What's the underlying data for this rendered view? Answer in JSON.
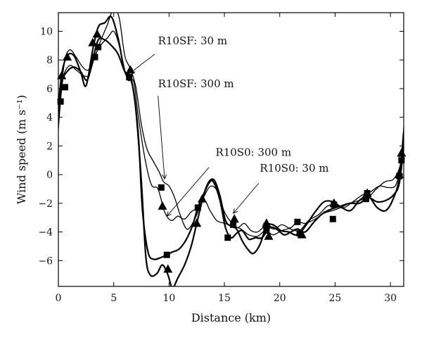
{
  "chart_data": {
    "type": "line",
    "xlabel": "Distance (km)",
    "ylabel": "Wind speed (m s⁻¹)",
    "xlim": [
      0,
      31.2
    ],
    "ylim": [
      -7.8,
      11.3
    ],
    "xticks": [
      0,
      5,
      10,
      15,
      20,
      25,
      30
    ],
    "yticks": [
      -6,
      -4,
      -2,
      0,
      2,
      4,
      6,
      8,
      10
    ],
    "grid": false,
    "legend": "none",
    "series": [
      {
        "id": "sf30",
        "line_width": 1.3,
        "marker": "none",
        "points": [
          [
            0,
            3.5
          ],
          [
            0.5,
            7.6
          ],
          [
            1.0,
            8.7
          ],
          [
            1.6,
            8.2
          ],
          [
            2.2,
            7.5
          ],
          [
            2.7,
            7.3
          ],
          [
            3.2,
            8.0
          ],
          [
            3.8,
            9.3
          ],
          [
            4.4,
            10.4
          ],
          [
            5.0,
            11.6
          ],
          [
            5.5,
            10.9
          ],
          [
            6.0,
            8.3
          ],
          [
            6.5,
            7.4
          ],
          [
            7.0,
            6.1
          ],
          [
            7.5,
            3.5
          ],
          [
            8.0,
            1.8
          ],
          [
            8.6,
            0.9
          ],
          [
            9.1,
            0.2
          ],
          [
            9.5,
            -0.5
          ],
          [
            10.0,
            -0.8
          ],
          [
            10.5,
            -1.6
          ],
          [
            11.0,
            -2.8
          ],
          [
            11.6,
            -3.8
          ],
          [
            12.2,
            -3.3
          ],
          [
            12.8,
            -2.2
          ],
          [
            13.3,
            -1.3
          ],
          [
            13.8,
            -0.8
          ],
          [
            14.4,
            -1.2
          ],
          [
            15.0,
            -2.6
          ],
          [
            15.6,
            -3.3
          ],
          [
            16.2,
            -3.7
          ],
          [
            16.8,
            -3.4
          ],
          [
            17.4,
            -3.9
          ],
          [
            18.0,
            -4.0
          ],
          [
            18.7,
            -3.6
          ],
          [
            19.5,
            -3.8
          ],
          [
            20.2,
            -3.5
          ],
          [
            21.0,
            -3.8
          ],
          [
            21.8,
            -3.9
          ],
          [
            22.6,
            -3.2
          ],
          [
            23.5,
            -2.8
          ],
          [
            24.3,
            -2.2
          ],
          [
            25.0,
            -2.1
          ],
          [
            25.8,
            -2.3
          ],
          [
            26.6,
            -1.9
          ],
          [
            27.5,
            -1.4
          ],
          [
            28.2,
            -1.2
          ],
          [
            29.0,
            -0.8
          ],
          [
            29.8,
            -0.9
          ],
          [
            30.5,
            -0.7
          ],
          [
            31.0,
            1.0
          ],
          [
            31.2,
            3.3
          ]
        ]
      },
      {
        "id": "sf300",
        "line_width": 1.3,
        "marker": "square",
        "points": [
          [
            0,
            3.2
          ],
          [
            0.4,
            6.6
          ],
          [
            1.0,
            7.6
          ],
          [
            1.6,
            7.3
          ],
          [
            2.3,
            6.9
          ],
          [
            2.8,
            7.0
          ],
          [
            3.3,
            8.3
          ],
          [
            3.8,
            9.0
          ],
          [
            4.5,
            9.6
          ],
          [
            5.0,
            10.0
          ],
          [
            5.5,
            9.0
          ],
          [
            6.2,
            6.7
          ],
          [
            6.8,
            6.5
          ],
          [
            7.2,
            4.2
          ],
          [
            7.8,
            1.2
          ],
          [
            8.4,
            -0.7
          ],
          [
            9.0,
            -1.0
          ],
          [
            9.6,
            -2.6
          ],
          [
            10.2,
            -3.2
          ],
          [
            10.8,
            -2.9
          ],
          [
            11.4,
            -3.1
          ],
          [
            12.0,
            -2.6
          ],
          [
            12.6,
            -2.3
          ],
          [
            13.2,
            -1.8
          ],
          [
            13.7,
            -2.5
          ],
          [
            14.3,
            -3.2
          ],
          [
            15.0,
            -3.4
          ],
          [
            15.8,
            -3.6
          ],
          [
            16.5,
            -3.8
          ],
          [
            17.2,
            -4.2
          ],
          [
            18.0,
            -4.3
          ],
          [
            18.7,
            -3.9
          ],
          [
            19.4,
            -4.2
          ],
          [
            20.2,
            -3.9
          ],
          [
            21.0,
            -3.7
          ],
          [
            21.6,
            -3.3
          ],
          [
            22.3,
            -3.4
          ],
          [
            23.2,
            -3.1
          ],
          [
            24.0,
            -2.7
          ],
          [
            24.8,
            -2.5
          ],
          [
            25.5,
            -2.3
          ],
          [
            26.3,
            -2.0
          ],
          [
            27.2,
            -1.8
          ],
          [
            28.0,
            -1.6
          ],
          [
            28.6,
            -1.1
          ],
          [
            29.5,
            -0.5
          ],
          [
            30.3,
            -0.3
          ],
          [
            30.9,
            0.7
          ],
          [
            31.2,
            2.5
          ]
        ],
        "markers": [
          [
            0.2,
            5.1
          ],
          [
            0.6,
            6.1
          ],
          [
            3.3,
            8.2
          ],
          [
            3.6,
            8.9
          ],
          [
            6.4,
            6.8
          ],
          [
            9.3,
            -0.9
          ],
          [
            12.6,
            -2.3
          ],
          [
            15.8,
            -3.5
          ],
          [
            18.8,
            -3.9
          ],
          [
            21.6,
            -3.3
          ],
          [
            24.8,
            -3.1
          ],
          [
            27.8,
            -1.7
          ],
          [
            30.8,
            -0.1
          ],
          [
            31.0,
            1.0
          ]
        ]
      },
      {
        "id": "s0_300",
        "line_width": 2.2,
        "marker": "square",
        "points": [
          [
            0,
            4.0
          ],
          [
            0.3,
            6.4
          ],
          [
            0.8,
            7.2
          ],
          [
            1.4,
            7.5
          ],
          [
            2.0,
            7.2
          ],
          [
            2.6,
            6.6
          ],
          [
            3.1,
            8.0
          ],
          [
            3.6,
            9.4
          ],
          [
            4.2,
            9.4
          ],
          [
            4.8,
            9.0
          ],
          [
            5.4,
            8.4
          ],
          [
            6.0,
            7.2
          ],
          [
            6.6,
            6.6
          ],
          [
            7.2,
            3.0
          ],
          [
            7.6,
            -2.5
          ],
          [
            8.1,
            -5.4
          ],
          [
            8.6,
            -5.9
          ],
          [
            9.2,
            -5.8
          ],
          [
            9.8,
            -5.6
          ],
          [
            10.3,
            -5.4
          ],
          [
            10.9,
            -5.2
          ],
          [
            11.5,
            -4.6
          ],
          [
            12.1,
            -3.6
          ],
          [
            12.6,
            -2.3
          ],
          [
            13.1,
            -1.4
          ],
          [
            13.6,
            -0.6
          ],
          [
            14.0,
            -0.5
          ],
          [
            14.6,
            -1.8
          ],
          [
            15.1,
            -3.7
          ],
          [
            15.6,
            -4.4
          ],
          [
            16.1,
            -4.1
          ],
          [
            16.6,
            -3.9
          ],
          [
            17.2,
            -4.5
          ],
          [
            17.8,
            -4.4
          ],
          [
            18.4,
            -4.4
          ],
          [
            19.1,
            -3.7
          ],
          [
            19.7,
            -3.8
          ],
          [
            20.4,
            -4.2
          ],
          [
            21.0,
            -4.0
          ],
          [
            21.6,
            -3.8
          ],
          [
            22.3,
            -4.0
          ],
          [
            23.1,
            -3.3
          ],
          [
            23.9,
            -2.7
          ],
          [
            24.7,
            -2.4
          ],
          [
            25.5,
            -2.2
          ],
          [
            26.3,
            -2.0
          ],
          [
            27.2,
            -2.0
          ],
          [
            28.0,
            -1.6
          ],
          [
            28.8,
            -1.9
          ],
          [
            29.6,
            -1.8
          ],
          [
            30.3,
            -1.4
          ],
          [
            30.8,
            -0.6
          ],
          [
            31.2,
            2.0
          ]
        ],
        "markers": [
          [
            9.8,
            -5.6
          ],
          [
            15.3,
            -4.4
          ],
          [
            18.8,
            -3.6
          ],
          [
            21.8,
            -4.1
          ],
          [
            24.9,
            -2.1
          ],
          [
            27.9,
            -1.3
          ]
        ]
      },
      {
        "id": "s0_30",
        "line_width": 2.2,
        "marker": "triangle",
        "points": [
          [
            0,
            4.6
          ],
          [
            0.3,
            7.0
          ],
          [
            0.8,
            8.3
          ],
          [
            1.4,
            8.3
          ],
          [
            2.0,
            7.2
          ],
          [
            2.5,
            6.2
          ],
          [
            3.1,
            8.7
          ],
          [
            3.6,
            10.3
          ],
          [
            4.2,
            10.6
          ],
          [
            4.8,
            11.0
          ],
          [
            5.4,
            9.5
          ],
          [
            6.0,
            7.2
          ],
          [
            6.6,
            6.5
          ],
          [
            7.0,
            4.5
          ],
          [
            7.5,
            -0.5
          ],
          [
            7.9,
            -5.7
          ],
          [
            8.3,
            -7.0
          ],
          [
            8.9,
            -6.9
          ],
          [
            9.4,
            -6.3
          ],
          [
            9.9,
            -7.0
          ],
          [
            10.3,
            -7.9
          ],
          [
            10.8,
            -7.2
          ],
          [
            11.4,
            -6.3
          ],
          [
            12.0,
            -5.0
          ],
          [
            12.5,
            -3.4
          ],
          [
            13.1,
            -1.5
          ],
          [
            13.6,
            -0.5
          ],
          [
            14.1,
            -0.4
          ],
          [
            14.6,
            -1.5
          ],
          [
            15.1,
            -3.2
          ],
          [
            15.6,
            -3.6
          ],
          [
            16.1,
            -3.8
          ],
          [
            16.6,
            -4.6
          ],
          [
            17.1,
            -5.2
          ],
          [
            17.6,
            -5.5
          ],
          [
            18.2,
            -4.9
          ],
          [
            18.8,
            -3.6
          ],
          [
            19.4,
            -3.5
          ],
          [
            20.1,
            -3.9
          ],
          [
            20.8,
            -4.0
          ],
          [
            21.6,
            -4.2
          ],
          [
            22.4,
            -3.5
          ],
          [
            23.2,
            -2.6
          ],
          [
            24.0,
            -1.9
          ],
          [
            24.8,
            -1.9
          ],
          [
            25.6,
            -2.3
          ],
          [
            26.4,
            -2.5
          ],
          [
            27.2,
            -1.8
          ],
          [
            28.0,
            -1.5
          ],
          [
            28.8,
            -2.3
          ],
          [
            29.6,
            -2.5
          ],
          [
            30.3,
            -1.6
          ],
          [
            30.8,
            -0.2
          ],
          [
            31.2,
            3.0
          ]
        ],
        "markers": [
          [
            0.3,
            6.9
          ],
          [
            0.8,
            8.2
          ],
          [
            3.1,
            9.2
          ],
          [
            3.5,
            9.8
          ],
          [
            6.5,
            7.3
          ],
          [
            9.4,
            -2.2
          ],
          [
            9.9,
            -6.6
          ],
          [
            12.5,
            -3.4
          ],
          [
            13.0,
            -1.7
          ],
          [
            15.9,
            -3.1
          ],
          [
            18.8,
            -3.4
          ],
          [
            19.0,
            -4.3
          ],
          [
            22.0,
            -4.2
          ],
          [
            24.9,
            -2.0
          ],
          [
            27.9,
            -1.3
          ],
          [
            30.8,
            0.0
          ],
          [
            31.0,
            1.5
          ]
        ]
      }
    ],
    "annotations": [
      {
        "text": "R10SF: 30 m",
        "text_at": [
          9.0,
          9.1
        ],
        "arrow_from": [
          8.7,
          8.4
        ],
        "arrow_to": [
          6.5,
          7.1
        ]
      },
      {
        "text": "R10SF: 300 m",
        "text_at": [
          9.0,
          6.1
        ],
        "arrow_from": [
          9.0,
          5.5
        ],
        "arrow_to": [
          9.6,
          -0.3
        ]
      },
      {
        "text": "R10S0: 300 m",
        "text_at": [
          14.2,
          1.3
        ],
        "arrow_from": [
          13.6,
          0.5
        ],
        "arrow_to": [
          9.8,
          -2.9
        ]
      },
      {
        "text": "R10S0: 30 m",
        "text_at": [
          18.2,
          0.2
        ],
        "arrow_from": [
          18.1,
          -0.6
        ],
        "arrow_to": [
          15.8,
          -2.7
        ]
      }
    ]
  }
}
